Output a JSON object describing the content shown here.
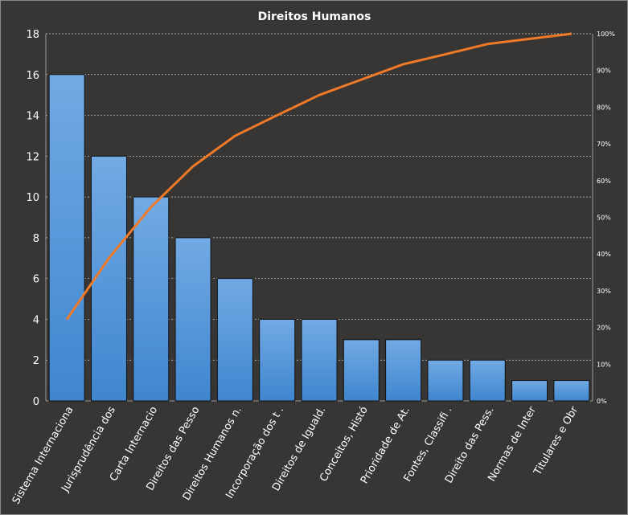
{
  "chart_data": {
    "type": "bar+line",
    "title": "Direitos  Humanos",
    "categories": [
      "Sistema Internaciona",
      "Jurisprudência dos",
      "Carta Internacio",
      "Direitos das Pesso",
      "Direitos Humanos n.",
      "Incorporação dos t .",
      "Direitos de Iguald.",
      "Conceitos, Histó",
      "Prioridade de At.",
      "Fontes,  Classifi .",
      "Direito das Pess.",
      "Normas de Inter",
      "Titulares e Obr"
    ],
    "series": [
      {
        "type": "bar",
        "axis": "left",
        "values": [
          16,
          12,
          10,
          8,
          6,
          4,
          4,
          3,
          3,
          2,
          2,
          1,
          1
        ],
        "color": "#4a90d9"
      },
      {
        "type": "line",
        "axis": "right",
        "values": [
          22.2,
          38.9,
          52.8,
          63.9,
          72.2,
          77.8,
          83.3,
          87.5,
          91.7,
          94.4,
          97.2,
          98.6,
          100
        ],
        "color": "#f07a28"
      }
    ],
    "ylim": [
      0,
      18
    ],
    "yticks": [
      "0",
      "2",
      "4",
      "6",
      "8",
      "10",
      "12",
      "14",
      "16",
      "18"
    ],
    "y2lim": [
      0,
      100
    ],
    "y2ticks": [
      "0%",
      "10%",
      "20%",
      "30%",
      "40%",
      "50%",
      "60%",
      "70%",
      "80%",
      "90%",
      "100%"
    ],
    "grid": true,
    "background": "#383634"
  }
}
